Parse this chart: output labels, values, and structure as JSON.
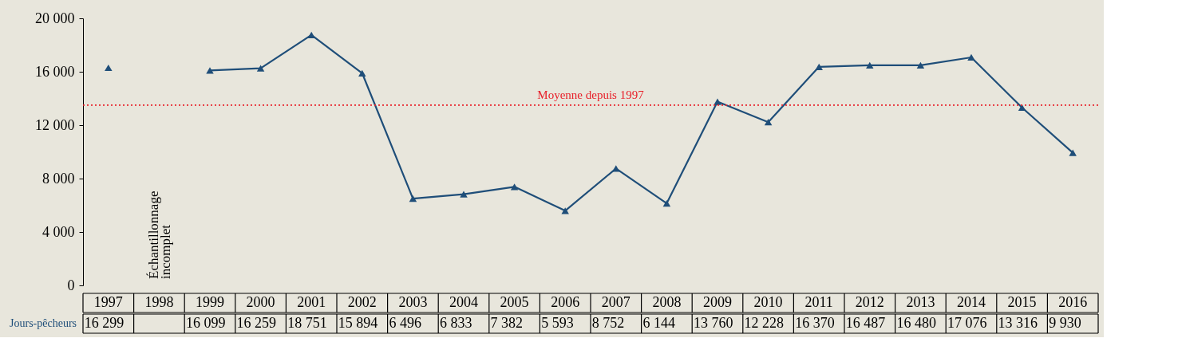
{
  "chart_data": {
    "type": "line",
    "categories": [
      "1997",
      "1998",
      "1999",
      "2000",
      "2001",
      "2002",
      "2003",
      "2004",
      "2005",
      "2006",
      "2007",
      "2008",
      "2009",
      "2010",
      "2011",
      "2012",
      "2013",
      "2014",
      "2015",
      "2016"
    ],
    "series": [
      {
        "name": "Jours-pêcheurs",
        "color": "#1f4e79",
        "values": [
          16299,
          null,
          16099,
          16259,
          18751,
          15894,
          6496,
          6833,
          7382,
          5593,
          8752,
          6144,
          13760,
          12228,
          16370,
          16487,
          16480,
          17076,
          13316,
          9930
        ],
        "value_labels": [
          "16 299",
          null,
          "16 099",
          "16 259",
          "18 751",
          "15 894",
          "6 496",
          "6 833",
          "7 382",
          "5 593",
          "8 752",
          "6 144",
          "13 760",
          "12 228",
          "16 370",
          "16 487",
          "16 480",
          "17 076",
          "13 316",
          "9 930"
        ]
      }
    ],
    "ylim": [
      0,
      20000
    ],
    "yticks": [
      0,
      {
        "value": 4000,
        "label": "4 000"
      },
      {
        "value": 8000,
        "label": "8 000"
      },
      {
        "value": 12000,
        "label": "12 000"
      },
      {
        "value": 16000,
        "label": "16 000"
      },
      {
        "value": 20000,
        "label": "20 000"
      }
    ],
    "ref_lines": [
      {
        "axis": "y",
        "value": 13500,
        "label": "Moyenne depuis 1997",
        "color": "#e8202a",
        "line_style": "dotted"
      }
    ],
    "annotations": [
      "Échantillonnage incomplet"
    ],
    "marker": "triangle",
    "line_style": "solid",
    "grid": false,
    "legend": "bottom left"
  }
}
